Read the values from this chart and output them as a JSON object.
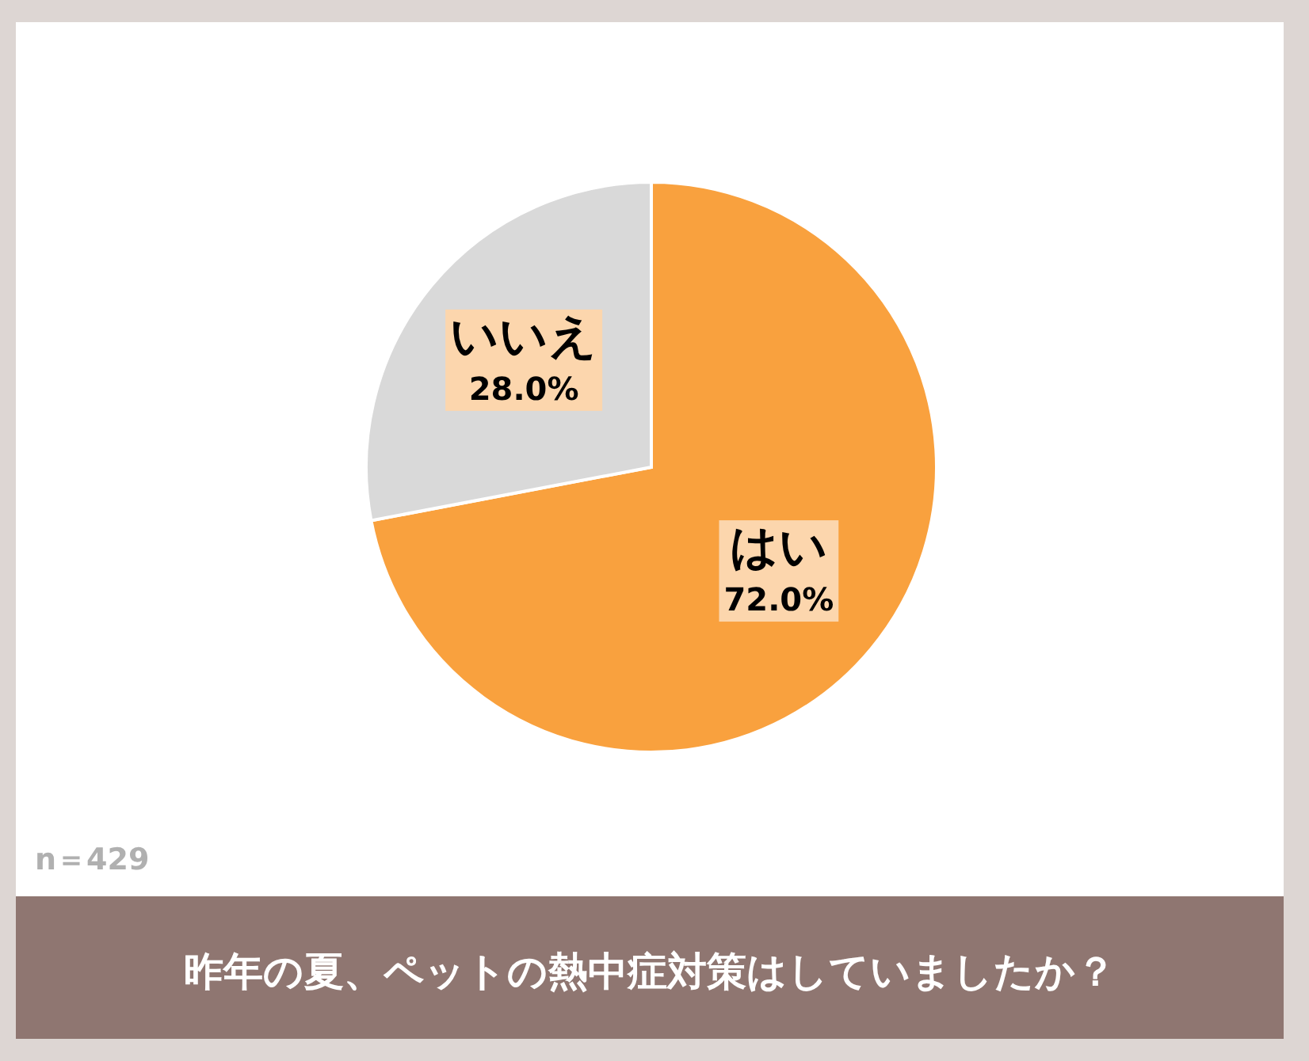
{
  "chart_data": {
    "type": "pie",
    "title": "昨年の夏、ペットの熱中症対策はしていましたか？",
    "categories": [
      "はい",
      "いいえ"
    ],
    "values": [
      72.0,
      28.0
    ],
    "colors": [
      "#f9a13e",
      "#d9d9d9"
    ],
    "value_labels": [
      "72.0%",
      "28.0%"
    ],
    "annotations": [
      "n＝429"
    ]
  }
}
